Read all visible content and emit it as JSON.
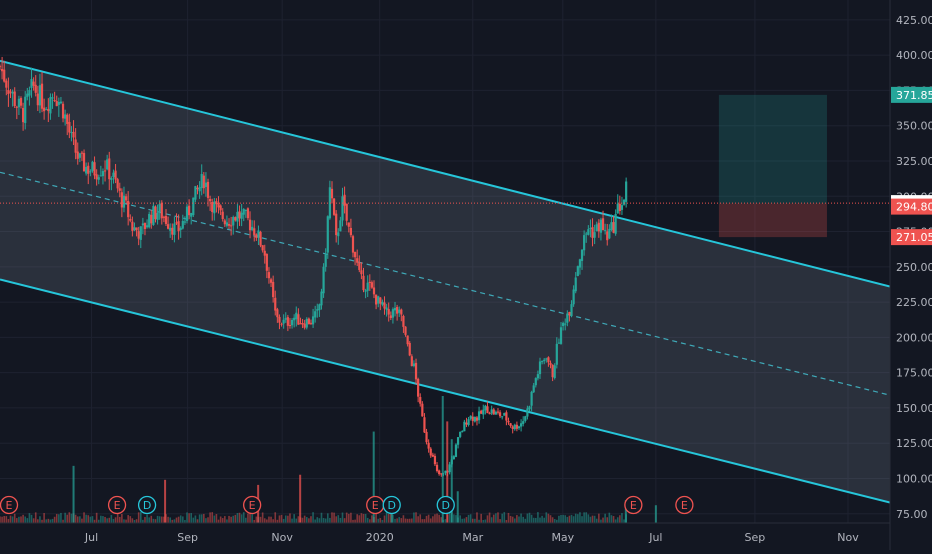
{
  "chart_data": {
    "type": "candlestick",
    "symbol_title": "",
    "y_axis": {
      "ticks": [
        "425.00",
        "400.00",
        "375.00",
        "350.00",
        "325.00",
        "300.00",
        "275.00",
        "250.00",
        "225.00",
        "200.00",
        "175.00",
        "150.00",
        "125.00",
        "100.00",
        "75.00"
      ],
      "tick_values": [
        425,
        400,
        375,
        350,
        325,
        300,
        275,
        250,
        225,
        200,
        175,
        150,
        125,
        100,
        75
      ],
      "ylim": [
        72,
        432
      ]
    },
    "x_axis": {
      "labels": [
        "Jul",
        "Sep",
        "Nov",
        "2020",
        "Mar",
        "May",
        "Jul",
        "Sep",
        "Nov"
      ],
      "label_days": [
        21,
        85,
        148,
        213,
        275,
        335,
        397,
        463,
        525
      ],
      "xlim": [
        -40,
        553
      ]
    },
    "price_labels": [
      {
        "name": "target",
        "value": "371.85",
        "price": 371.85,
        "color": "#26a69a"
      },
      {
        "name": "current",
        "value": "295.15",
        "price": 295.15,
        "color": "#ffffff"
      },
      {
        "name": "entry",
        "value": "294.80",
        "price": 294.8,
        "color": "#ef5350"
      },
      {
        "name": "stop",
        "value": "271.05",
        "price": 271.05,
        "color": "#ef5350"
      }
    ],
    "channel": {
      "upper": [
        [
          -40,
          396
        ],
        [
          553,
          236
        ]
      ],
      "middle": [
        [
          -40,
          317
        ],
        [
          553,
          159
        ]
      ],
      "lower": [
        [
          -40,
          241
        ],
        [
          553,
          83
        ]
      ],
      "line_color": "#26c6da"
    },
    "position_box": {
      "x_start": 439,
      "x_end": 511,
      "target": 371.85,
      "entry": 294.8,
      "stop": 271.05
    },
    "event_markers": [
      {
        "letter": "E",
        "day": -34,
        "type": "earnings"
      },
      {
        "letter": "E",
        "day": 38,
        "type": "earnings"
      },
      {
        "letter": "D",
        "day": 58,
        "type": "dividend"
      },
      {
        "letter": "E",
        "day": 128,
        "type": "earnings"
      },
      {
        "letter": "E",
        "day": 210,
        "type": "earnings"
      },
      {
        "letter": "D",
        "day": 221,
        "type": "dividend"
      },
      {
        "letter": "D",
        "day": 257,
        "type": "dividend"
      },
      {
        "letter": "E",
        "day": 382,
        "type": "earnings"
      },
      {
        "letter": "E",
        "day": 416,
        "type": "earnings"
      }
    ],
    "price_anchors": [
      [
        -40,
        392
      ],
      [
        -32,
        372
      ],
      [
        -25,
        358
      ],
      [
        -18,
        378
      ],
      [
        -10,
        365
      ],
      [
        -4,
        374
      ],
      [
        2,
        362
      ],
      [
        8,
        338
      ],
      [
        13,
        325
      ],
      [
        18,
        320
      ],
      [
        24,
        318
      ],
      [
        30,
        322
      ],
      [
        36,
        312
      ],
      [
        40,
        300
      ],
      [
        44,
        292
      ],
      [
        48,
        278
      ],
      [
        54,
        274
      ],
      [
        60,
        286
      ],
      [
        66,
        290
      ],
      [
        72,
        282
      ],
      [
        78,
        275
      ],
      [
        84,
        285
      ],
      [
        90,
        300
      ],
      [
        96,
        313
      ],
      [
        100,
        298
      ],
      [
        106,
        287
      ],
      [
        112,
        283
      ],
      [
        118,
        287
      ],
      [
        124,
        284
      ],
      [
        130,
        276
      ],
      [
        136,
        262
      ],
      [
        140,
        238
      ],
      [
        144,
        213
      ],
      [
        150,
        210
      ],
      [
        156,
        214
      ],
      [
        162,
        211
      ],
      [
        168,
        212
      ],
      [
        172,
        217
      ],
      [
        176,
        248
      ],
      [
        180,
        308
      ],
      [
        184,
        268
      ],
      [
        188,
        296
      ],
      [
        192,
        278
      ],
      [
        196,
        262
      ],
      [
        200,
        240
      ],
      [
        206,
        236
      ],
      [
        212,
        225
      ],
      [
        218,
        216
      ],
      [
        224,
        219
      ],
      [
        228,
        212
      ],
      [
        232,
        190
      ],
      [
        236,
        178
      ],
      [
        240,
        150
      ],
      [
        244,
        128
      ],
      [
        248,
        116
      ],
      [
        251,
        104
      ],
      [
        254,
        102
      ],
      [
        258,
        105
      ],
      [
        262,
        116
      ],
      [
        266,
        130
      ],
      [
        272,
        144
      ],
      [
        278,
        143
      ],
      [
        284,
        150
      ],
      [
        290,
        146
      ],
      [
        296,
        144
      ],
      [
        302,
        136
      ],
      [
        308,
        140
      ],
      [
        312,
        150
      ],
      [
        316,
        168
      ],
      [
        320,
        180
      ],
      [
        324,
        188
      ],
      [
        328,
        173
      ],
      [
        332,
        198
      ],
      [
        336,
        212
      ],
      [
        340,
        222
      ],
      [
        344,
        248
      ],
      [
        348,
        265
      ],
      [
        352,
        278
      ],
      [
        356,
        274
      ],
      [
        360,
        281
      ],
      [
        364,
        271
      ],
      [
        368,
        277
      ],
      [
        372,
        292
      ],
      [
        376,
        298
      ],
      [
        378,
        311
      ]
    ],
    "volume_spikes": [
      [
        9,
        45
      ],
      [
        70,
        34
      ],
      [
        132,
        30
      ],
      [
        160,
        38
      ],
      [
        209,
        72
      ],
      [
        221,
        20
      ],
      [
        255,
        100
      ],
      [
        258,
        80
      ],
      [
        261,
        66
      ],
      [
        265,
        25
      ],
      [
        377,
        18
      ],
      [
        397,
        14
      ]
    ]
  }
}
